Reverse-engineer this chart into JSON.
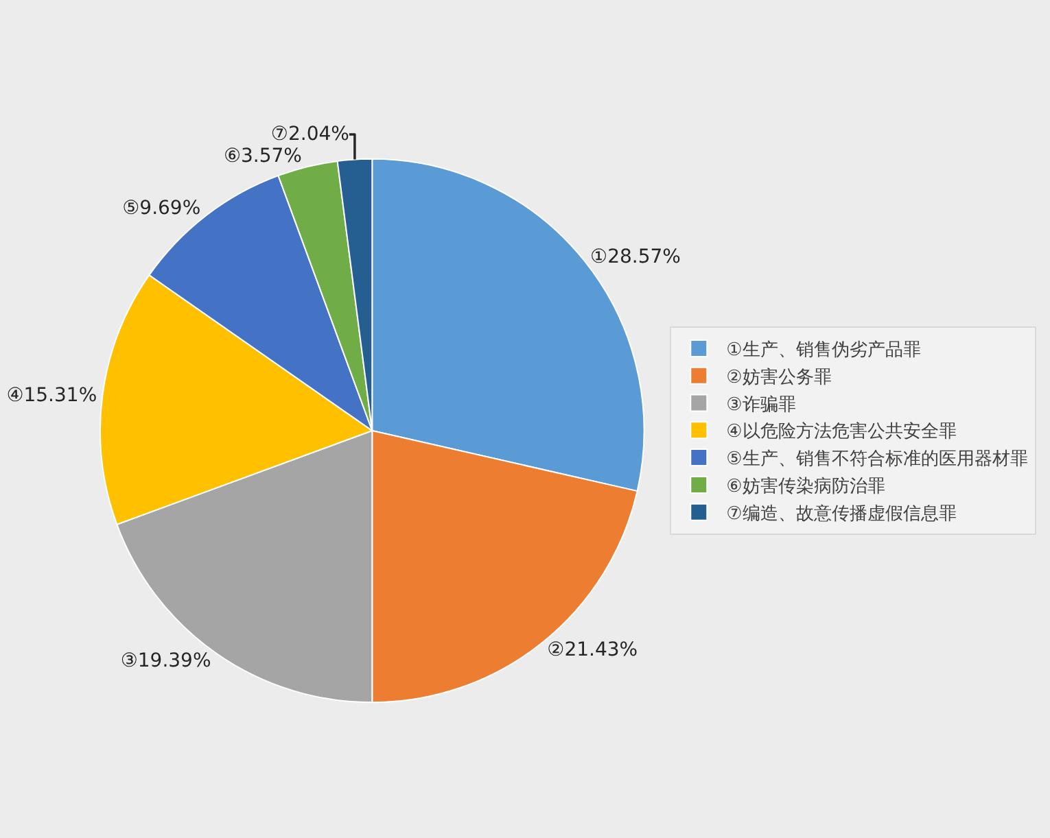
{
  "chart_data": {
    "type": "pie",
    "categories": [
      "①生产、销售伪劣产品罪",
      "②妨害公务罪",
      "③诈骗罪",
      "④以危险方法危害公共安全罪",
      "⑤生产、销售不符合标准的医用器材罪",
      "⑥妨害传染病防治罪",
      "⑦编造、故意传播虚假信息罪"
    ],
    "values": [
      28.57,
      21.43,
      19.39,
      15.31,
      9.69,
      3.57,
      2.04
    ],
    "value_labels": [
      "①28.57%",
      "②21.43%",
      "③19.39%",
      "④15.31%",
      "⑤9.69%",
      "⑥3.57%",
      "⑦2.04%"
    ],
    "colors": [
      "#5b9bd5",
      "#ed7d31",
      "#a5a5a5",
      "#ffc000",
      "#4472c4",
      "#70ad47",
      "#255e91"
    ],
    "legend": "right"
  }
}
